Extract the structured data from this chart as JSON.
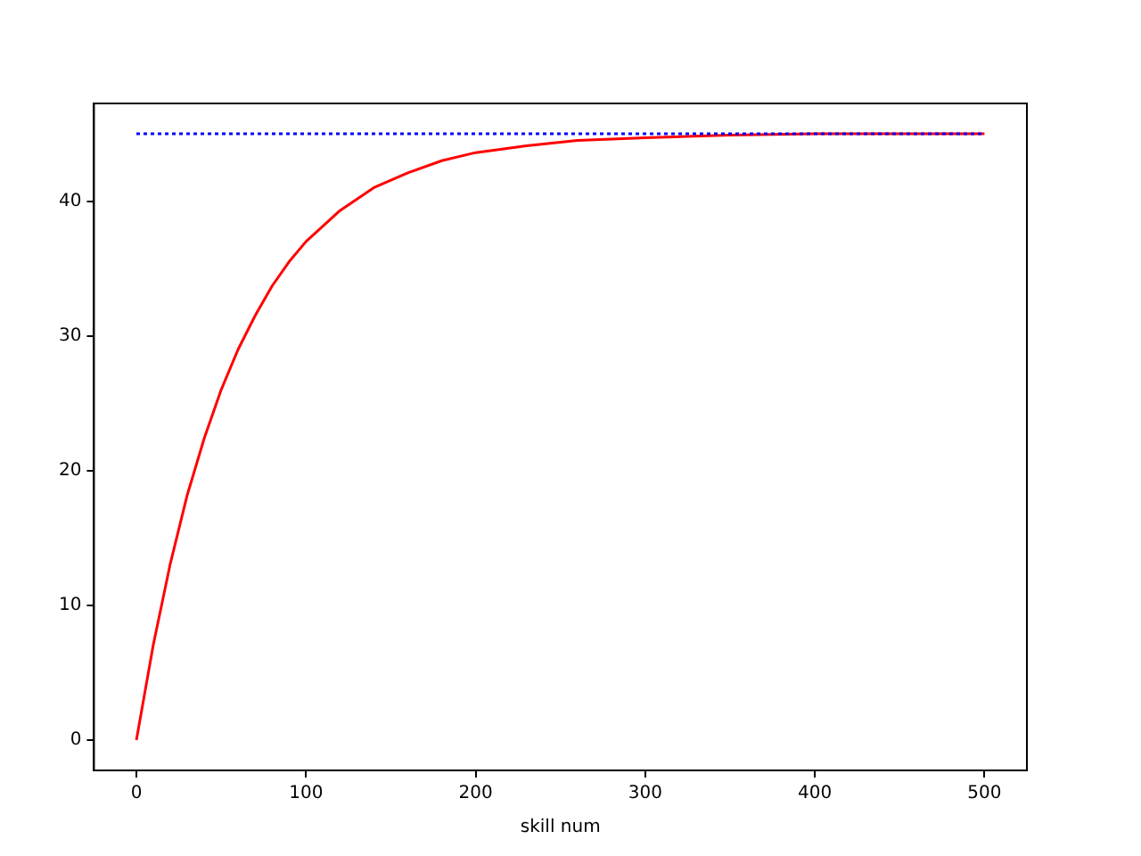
{
  "chart_data": {
    "type": "line",
    "xlabel": "skill num",
    "xlim": [
      -25,
      525
    ],
    "xticks": [
      0,
      100,
      200,
      300,
      400,
      500
    ],
    "ylim": [
      -2.25,
      47.25
    ],
    "yticks": [
      0,
      10,
      20,
      30,
      40
    ],
    "grid": false,
    "legend": false,
    "marker": "none",
    "series": [
      {
        "color": "#ff0000",
        "line_style": "solid",
        "x": [
          0,
          10,
          20,
          30,
          40,
          50,
          60,
          70,
          80,
          90,
          100,
          120,
          140,
          160,
          180,
          200,
          230,
          260,
          300,
          350,
          400,
          450,
          500
        ],
        "values": [
          0,
          7.1,
          13.1,
          18.2,
          22.4,
          26.0,
          29.0,
          31.5,
          33.7,
          35.5,
          37.0,
          39.3,
          41.0,
          42.1,
          43.0,
          43.6,
          44.1,
          44.5,
          44.7,
          44.9,
          45.0,
          45.0,
          45.0
        ]
      },
      {
        "color": "#0000ff",
        "line_style": "dotted",
        "x": [
          0,
          500
        ],
        "values": [
          45,
          45
        ]
      }
    ]
  }
}
